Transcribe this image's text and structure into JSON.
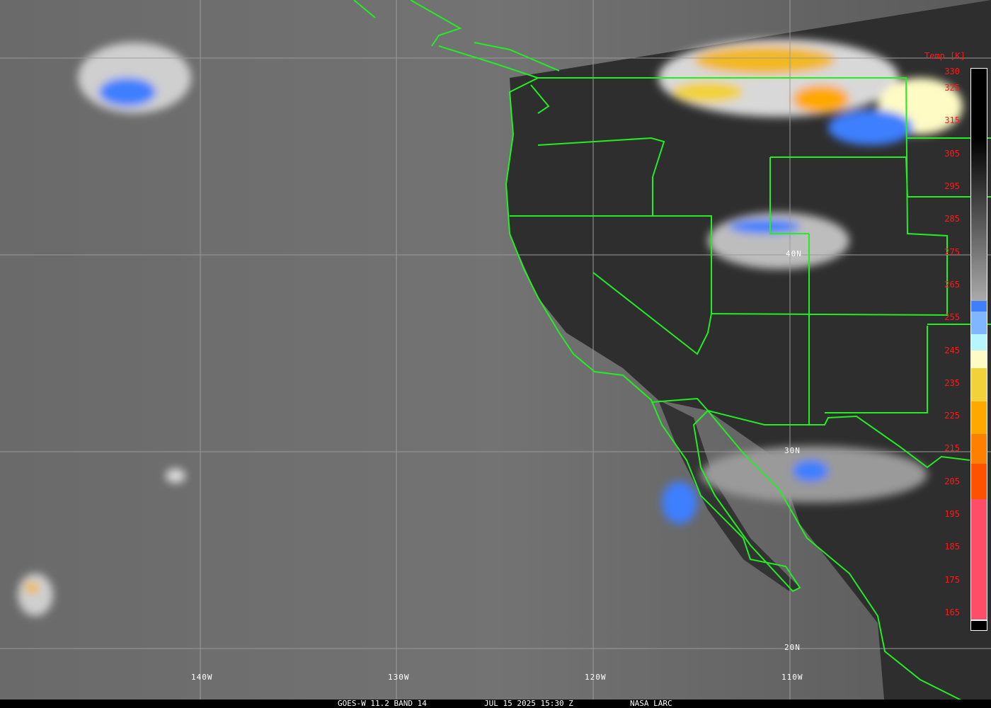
{
  "caption": {
    "satellite": "GOES-W 11.2 BAND 14",
    "datetime": "JUL 15 2025 15:30 Z",
    "credit": "NASA LARC"
  },
  "longitude_labels": [
    "140W",
    "130W",
    "120W",
    "110W"
  ],
  "latitude_labels": [
    "40N",
    "30N",
    "20N"
  ],
  "colorbar": {
    "title": "Temp [K]",
    "ticks": [
      "330",
      "325",
      "315",
      "305",
      "295",
      "285",
      "275",
      "265",
      "255",
      "245",
      "235",
      "225",
      "215",
      "205",
      "195",
      "185",
      "175",
      "165"
    ],
    "colors": {
      "gray_top": "#000000",
      "gray_bottom": "#aaaaaa",
      "blue": "#3d7fff",
      "light_blue": "#7fb6ff",
      "cyan": "#b8f6ff",
      "pale_yellow": "#fffbc4",
      "yellow": "#f2d23a",
      "orange": "#ffa800",
      "dark_orange": "#ff8000",
      "red_orange": "#ff5200",
      "pink": "#ff4d68"
    }
  },
  "colors": {
    "borders": "#22ee22",
    "graticule": "#9a9a9a",
    "labels": "#ff1a1a"
  }
}
